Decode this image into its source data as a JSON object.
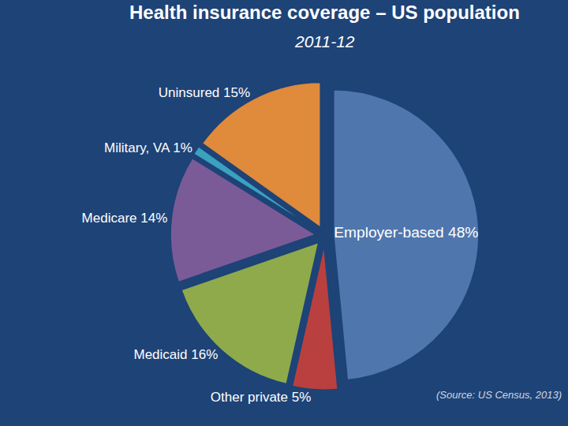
{
  "chart_data": {
    "type": "pie",
    "title": "Health insurance coverage – US population",
    "subtitle": "2011-12",
    "annotations": [
      "(Source: US Census, 2013)"
    ],
    "categories": [
      "Employer-based",
      "Other private",
      "Medicaid",
      "Medicare",
      "Military, VA",
      "Uninsured"
    ],
    "values": [
      48,
      5,
      16,
      14,
      1,
      15
    ],
    "value_labels": [
      "Employer-based 48%",
      "Other private 5%",
      "Medicaid 16%",
      "Medicare 14%",
      "Military, VA 1%",
      "Uninsured 15%"
    ],
    "colors": [
      "#4f76ad",
      "#b9403e",
      "#8faa4a",
      "#7a5b98",
      "#3aa1bf",
      "#e08a3c"
    ],
    "data_labels": true
  }
}
